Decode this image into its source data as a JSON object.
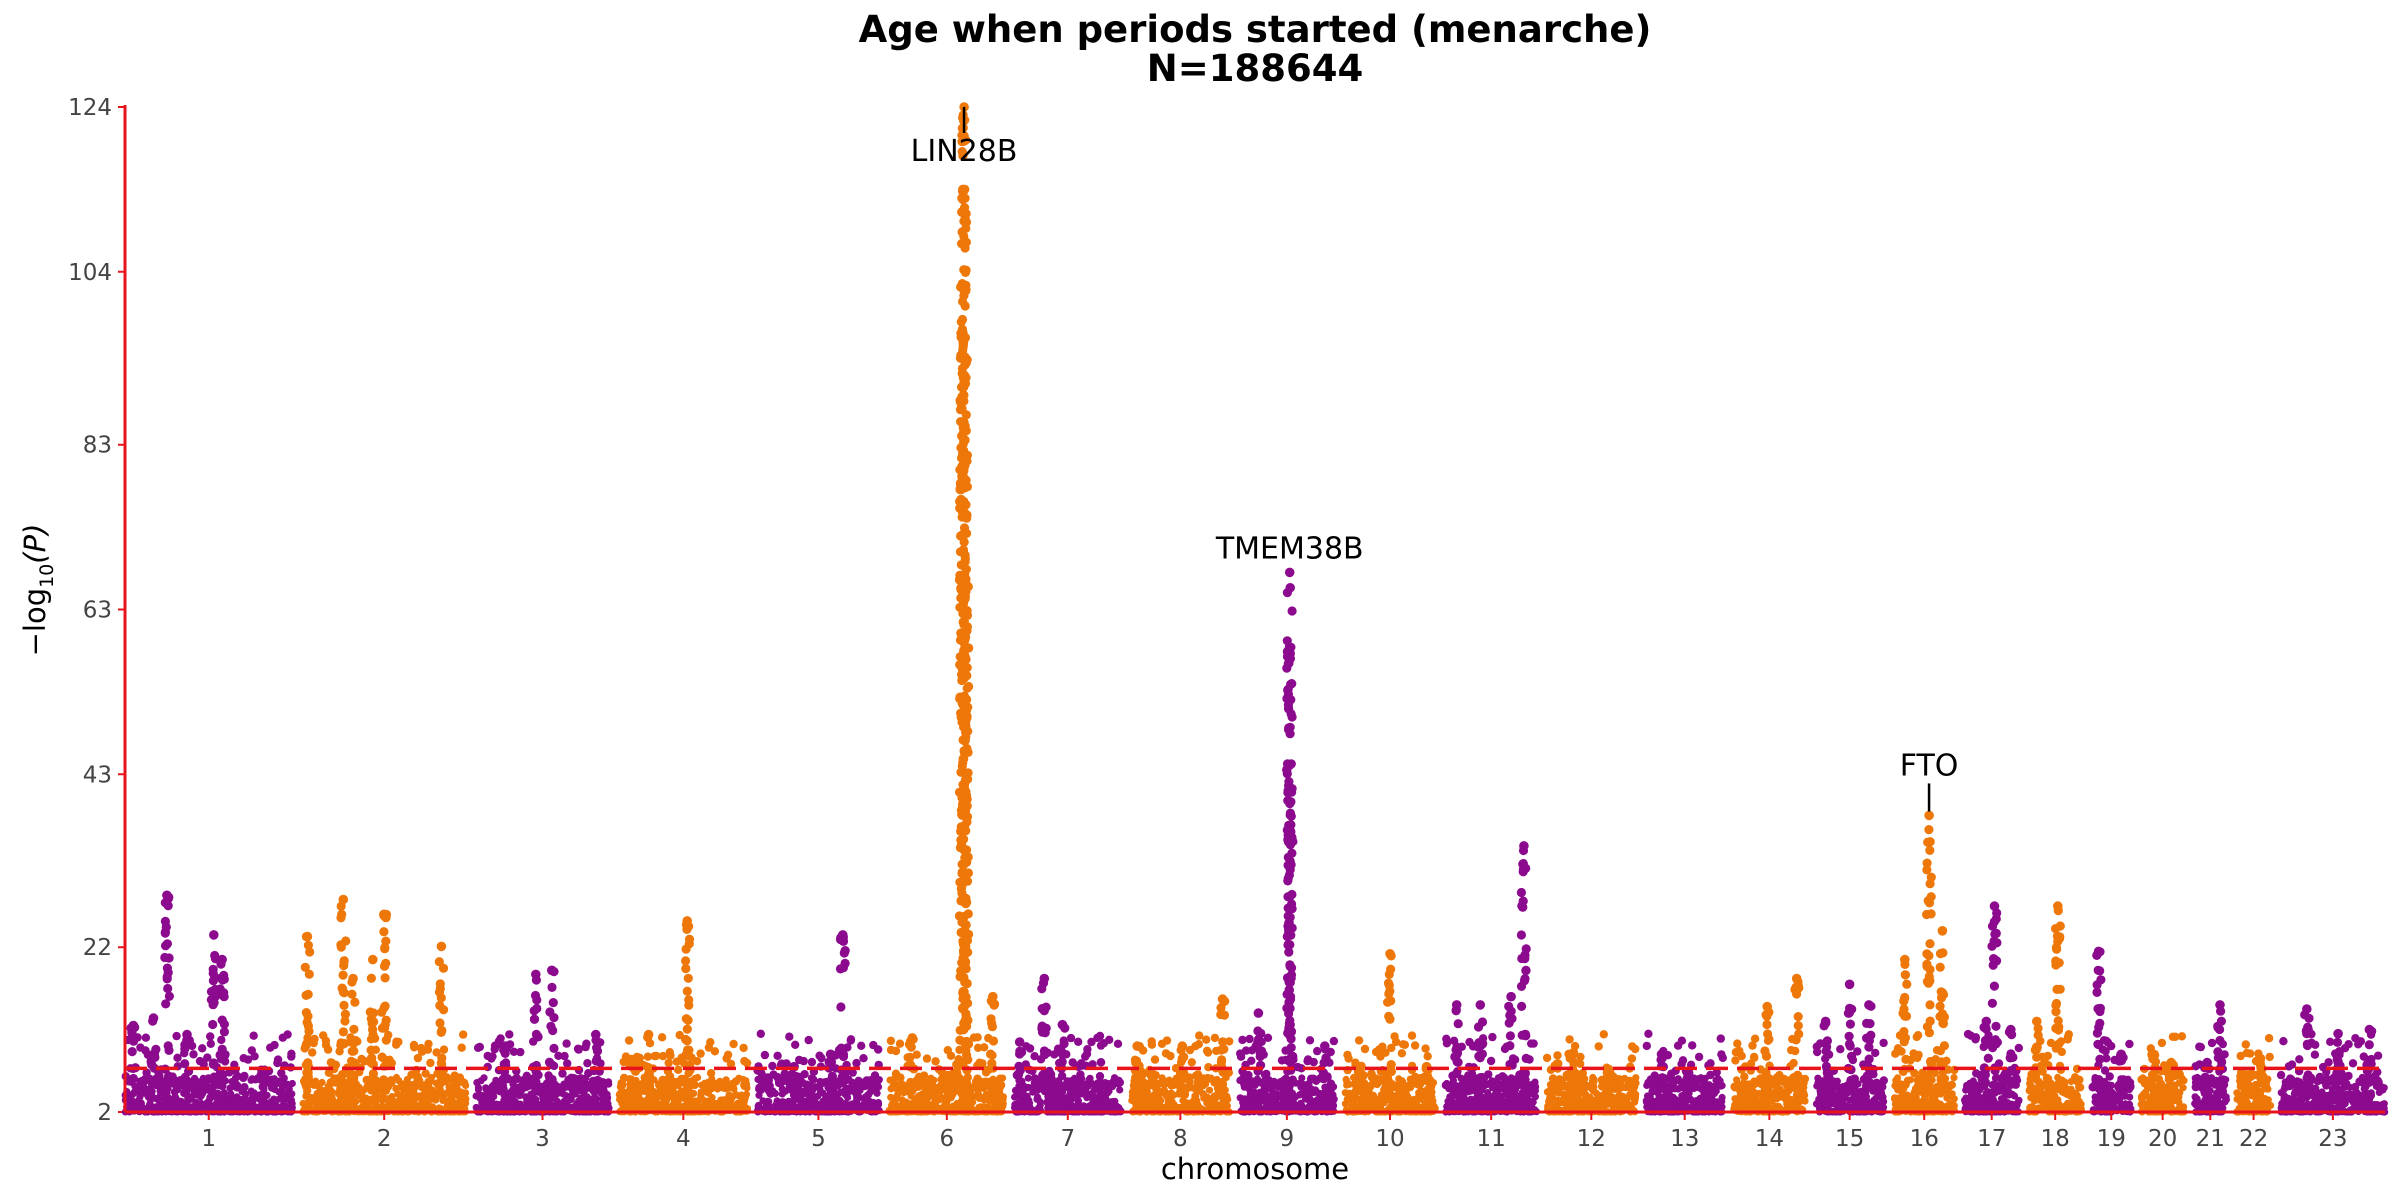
{
  "chart_data": {
    "type": "scatter",
    "title": "Age when periods started (menarche)",
    "subtitle": "N=188644",
    "xlabel": "chromosome",
    "ylabel": "−log",
    "ylabel_sub": "10",
    "ylabel_tail": "(P)",
    "ylim": [
      2,
      124
    ],
    "yticks": [
      "124",
      "104",
      "83",
      "63",
      "43",
      "22",
      "2"
    ],
    "ytick_values": [
      124,
      104,
      83,
      63,
      43,
      22,
      2
    ],
    "significance_threshold": 7.3,
    "colors": {
      "odd": "#8B0A8E",
      "even": "#EE7709",
      "threshold": "#E8141B",
      "axis": "#E8141B"
    },
    "chromosomes": [
      {
        "label": "1",
        "max": 28.3,
        "spikes": [
          [
            0.25,
            28.3
          ],
          [
            0.53,
            23.5
          ],
          [
            0.58,
            20.5
          ],
          [
            0.17,
            13.4
          ],
          [
            0.05,
            12.5
          ],
          [
            0.37,
            11.4
          ]
        ]
      },
      {
        "label": "2",
        "max": 27.8,
        "spikes": [
          [
            0.25,
            27.8
          ],
          [
            0.03,
            23.3
          ],
          [
            0.5,
            26.0
          ],
          [
            0.85,
            22.1
          ],
          [
            0.31,
            18.2
          ],
          [
            0.43,
            20.5
          ]
        ]
      },
      {
        "label": "3",
        "max": 19.2,
        "spikes": [
          [
            0.45,
            18.7
          ],
          [
            0.57,
            19.2
          ],
          [
            0.9,
            11.4
          ],
          [
            0.22,
            10.0
          ]
        ]
      },
      {
        "label": "4",
        "max": 25.2,
        "spikes": [
          [
            0.53,
            25.2
          ],
          [
            0.23,
            11.4
          ],
          [
            0.14,
            8.6
          ]
        ]
      },
      {
        "label": "5",
        "max": 23.5,
        "spikes": [
          [
            0.7,
            23.5
          ],
          [
            0.6,
            9.0
          ],
          [
            0.3,
            7.5
          ]
        ]
      },
      {
        "label": "6",
        "max": 124,
        "spikes": [
          [
            0.65,
            124.0
          ],
          [
            0.64,
            114.0
          ],
          [
            0.66,
            96.0
          ],
          [
            0.63,
            90.0
          ],
          [
            0.67,
            66.0
          ],
          [
            0.2,
            11.0
          ],
          [
            0.9,
            16.0
          ]
        ]
      },
      {
        "label": "7",
        "max": 18.2,
        "spikes": [
          [
            0.28,
            18.2
          ],
          [
            0.45,
            12.6
          ],
          [
            0.05,
            10.5
          ]
        ]
      },
      {
        "label": "8",
        "max": 15.7,
        "spikes": [
          [
            0.93,
            15.7
          ],
          [
            0.52,
            10.0
          ],
          [
            0.06,
            10.0
          ]
        ]
      },
      {
        "label": "9",
        "max": 67.5,
        "spikes": [
          [
            0.53,
            67.5
          ],
          [
            0.52,
            56.5
          ],
          [
            0.54,
            36.0
          ],
          [
            0.2,
            14.0
          ],
          [
            0.9,
            10.0
          ]
        ]
      },
      {
        "label": "10",
        "max": 21.2,
        "spikes": [
          [
            0.5,
            21.2
          ],
          [
            0.15,
            7.5
          ],
          [
            0.9,
            7.5
          ]
        ]
      },
      {
        "label": "11",
        "max": 34.3,
        "spikes": [
          [
            0.86,
            34.3
          ],
          [
            0.72,
            16.0
          ],
          [
            0.38,
            15.0
          ],
          [
            0.12,
            15.0
          ]
        ]
      },
      {
        "label": "12",
        "max": 9.2,
        "spikes": [
          [
            0.3,
            9.2
          ],
          [
            0.7,
            7.0
          ]
        ]
      },
      {
        "label": "13",
        "max": 9.0,
        "spikes": [
          [
            0.2,
            9.0
          ],
          [
            0.55,
            6.8
          ]
        ]
      },
      {
        "label": "14",
        "max": 18.2,
        "spikes": [
          [
            0.88,
            18.2
          ],
          [
            0.47,
            14.8
          ]
        ]
      },
      {
        "label": "15",
        "max": 17.5,
        "spikes": [
          [
            0.5,
            17.5
          ],
          [
            0.78,
            15.0
          ],
          [
            0.15,
            13.0
          ]
        ]
      },
      {
        "label": "16",
        "max": 38.0,
        "spikes": [
          [
            0.58,
            38.0
          ],
          [
            0.8,
            24.0
          ],
          [
            0.18,
            20.5
          ]
        ]
      },
      {
        "label": "17",
        "max": 27.0,
        "spikes": [
          [
            0.55,
            27.0
          ],
          [
            0.4,
            13.0
          ],
          [
            0.85,
            12.0
          ]
        ]
      },
      {
        "label": "18",
        "max": 27.0,
        "spikes": [
          [
            0.55,
            27.0
          ],
          [
            0.15,
            13.0
          ]
        ]
      },
      {
        "label": "19",
        "max": 21.5,
        "spikes": [
          [
            0.18,
            21.5
          ],
          [
            0.75,
            9.0
          ]
        ]
      },
      {
        "label": "20",
        "max": 9.0,
        "spikes": [
          [
            0.3,
            9.0
          ],
          [
            0.7,
            8.0
          ]
        ]
      },
      {
        "label": "21",
        "max": 15.0,
        "spikes": [
          [
            0.8,
            15.0
          ],
          [
            0.4,
            8.0
          ]
        ]
      },
      {
        "label": "22",
        "max": 8.5,
        "spikes": [
          [
            0.7,
            8.5
          ],
          [
            0.3,
            6.5
          ]
        ]
      },
      {
        "label": "23",
        "max": 14.5,
        "spikes": [
          [
            0.25,
            14.5
          ],
          [
            0.55,
            11.5
          ],
          [
            0.85,
            12.0
          ]
        ]
      }
    ],
    "annotations": [
      {
        "label": "LIN28B",
        "chromosome": "6",
        "pos": 0.65,
        "y": 124.0
      },
      {
        "label": "TMEM38B",
        "chromosome": "9",
        "pos": 0.53,
        "y": 67.5
      },
      {
        "label": "FTO",
        "chromosome": "16",
        "pos": 0.58,
        "y": 38.0
      }
    ]
  }
}
